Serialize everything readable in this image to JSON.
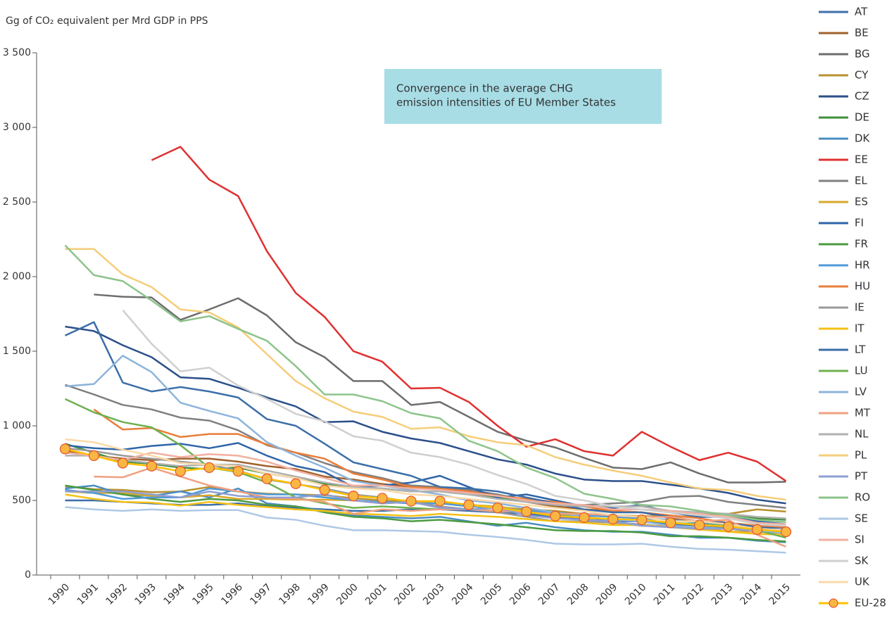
{
  "chart_data": {
    "type": "line",
    "title": "Gg of CO₂ equivalent per Mrd GDP in PPS",
    "annotation": [
      "Convergence in the average CHG",
      "emission intensities of EU Member States"
    ],
    "categories": [
      "1990",
      "1991",
      "1992",
      "1993",
      "1994",
      "1995",
      "1996",
      "1997",
      "1998",
      "1999",
      "2000",
      "2001",
      "2002",
      "2003",
      "2004",
      "2005",
      "2006",
      "2007",
      "2008",
      "2009",
      "2010",
      "2011",
      "2012",
      "2013",
      "2014",
      "2015"
    ],
    "ylim": [
      0,
      3500
    ],
    "yticks": [
      0,
      500,
      {
        "value": 1000,
        "label": "1 000"
      },
      {
        "value": 1500,
        "label": "1 500"
      },
      {
        "value": 2000,
        "label": "2 000"
      },
      {
        "value": 2500,
        "label": "2 500"
      },
      {
        "value": 3000,
        "label": "3 000"
      },
      {
        "value": 3500,
        "label": "3 500"
      }
    ],
    "series": [
      {
        "name": "AT",
        "color": "#3c6fa8",
        "values": [
          500,
          500,
          490,
          480,
          470,
          470,
          480,
          460,
          450,
          440,
          430,
          430,
          440,
          440,
          430,
          420,
          410,
          390,
          380,
          360,
          360,
          340,
          330,
          320,
          310,
          300
        ]
      },
      {
        "name": "BE",
        "color": "#a0612b",
        "values": [
          830,
          800,
          780,
          770,
          780,
          780,
          760,
          730,
          710,
          660,
          640,
          610,
          590,
          580,
          550,
          520,
          490,
          460,
          440,
          430,
          420,
          380,
          360,
          350,
          330,
          320
        ]
      },
      {
        "name": "BG",
        "color": "#6d6d6d",
        "values": [
          null,
          1880,
          1865,
          1860,
          1710,
          1780,
          1855,
          1740,
          1560,
          1460,
          1300,
          1300,
          1140,
          1160,
          1060,
          960,
          900,
          855,
          785,
          720,
          710,
          755,
          680,
          620,
          620,
          625
        ]
      },
      {
        "name": "CY",
        "color": "#b8912f",
        "values": [
          595,
          575,
          570,
          555,
          560,
          590,
          560,
          545,
          540,
          535,
          515,
          500,
          490,
          480,
          470,
          455,
          440,
          430,
          410,
          400,
          395,
          390,
          395,
          410,
          440,
          425
        ]
      },
      {
        "name": "CZ",
        "color": "#2b4f8a",
        "values": [
          1665,
          1635,
          1540,
          1460,
          1325,
          1315,
          1255,
          1190,
          1130,
          1025,
          1030,
          960,
          915,
          885,
          830,
          775,
          740,
          680,
          640,
          630,
          630,
          605,
          580,
          550,
          505,
          480
        ]
      },
      {
        "name": "DE",
        "color": "#3f8f3a",
        "values": [
          880,
          820,
          760,
          745,
          720,
          710,
          720,
          680,
          650,
          610,
          590,
          580,
          560,
          560,
          540,
          515,
          500,
          470,
          460,
          440,
          440,
          420,
          415,
          410,
          380,
          370
        ]
      },
      {
        "name": "DK",
        "color": "#4a8cc2",
        "values": [
          580,
          600,
          540,
          530,
          560,
          520,
          580,
          480,
          460,
          430,
          400,
          390,
          380,
          390,
          360,
          330,
          350,
          320,
          300,
          290,
          290,
          270,
          250,
          250,
          230,
          220
        ]
      },
      {
        "name": "EE",
        "color": "#e03030",
        "values": [
          null,
          null,
          null,
          2780,
          2870,
          2650,
          2540,
          2170,
          1890,
          1730,
          1500,
          1430,
          1250,
          1255,
          1160,
          1000,
          860,
          910,
          830,
          800,
          960,
          860,
          770,
          820,
          760,
          630
        ]
      },
      {
        "name": "EL",
        "color": "#808080",
        "values": [
          1275,
          1210,
          1140,
          1110,
          1055,
          1035,
          970,
          870,
          820,
          750,
          690,
          650,
          600,
          590,
          570,
          540,
          500,
          470,
          470,
          480,
          490,
          525,
          530,
          490,
          470,
          450
        ]
      },
      {
        "name": "ES",
        "color": "#d9a82a",
        "values": [
          560,
          550,
          550,
          530,
          520,
          535,
          510,
          510,
          505,
          505,
          500,
          480,
          490,
          480,
          470,
          460,
          430,
          415,
          380,
          350,
          330,
          330,
          320,
          290,
          290,
          290
        ]
      },
      {
        "name": "FI",
        "color": "#2f64a8",
        "values": [
          870,
          850,
          840,
          865,
          880,
          850,
          885,
          800,
          730,
          690,
          590,
          600,
          620,
          665,
          590,
          520,
          540,
          500,
          460,
          450,
          470,
          420,
          390,
          390,
          360,
          340
        ]
      },
      {
        "name": "FR",
        "color": "#4b9a40",
        "values": [
          600,
          570,
          540,
          510,
          490,
          510,
          500,
          470,
          460,
          420,
          390,
          380,
          360,
          370,
          355,
          340,
          320,
          300,
          295,
          295,
          285,
          260,
          260,
          250,
          235,
          225
        ]
      },
      {
        "name": "HR",
        "color": "#4f9ad9",
        "values": [
          570,
          550,
          510,
          520,
          520,
          580,
          560,
          540,
          540,
          520,
          500,
          490,
          480,
          480,
          460,
          450,
          430,
          420,
          400,
          390,
          380,
          370,
          350,
          340,
          320,
          310
        ]
      },
      {
        "name": "HU",
        "color": "#ea7e3a",
        "values": [
          null,
          1110,
          975,
          985,
          925,
          945,
          945,
          875,
          820,
          780,
          680,
          640,
          590,
          580,
          560,
          530,
          510,
          490,
          460,
          430,
          420,
          400,
          380,
          350,
          330,
          320
        ]
      },
      {
        "name": "IE",
        "color": "#9a9a9a",
        "values": [
          850,
          830,
          800,
          780,
          760,
          740,
          700,
          640,
          610,
          580,
          540,
          520,
          490,
          460,
          440,
          420,
          390,
          360,
          360,
          350,
          340,
          320,
          310,
          310,
          290,
          280
        ]
      },
      {
        "name": "IT",
        "color": "#f5c116",
        "values": [
          540,
          510,
          490,
          485,
          465,
          490,
          470,
          455,
          440,
          430,
          410,
          405,
          395,
          410,
          400,
          390,
          375,
          360,
          350,
          335,
          335,
          320,
          305,
          290,
          275,
          270
        ]
      },
      {
        "name": "LT",
        "color": "#3b6ea8",
        "values": [
          1605,
          1695,
          1290,
          1230,
          1260,
          1230,
          1190,
          1045,
          1000,
          880,
          755,
          710,
          665,
          590,
          580,
          560,
          520,
          480,
          440,
          420,
          420,
          390,
          360,
          350,
          320,
          310
        ]
      },
      {
        "name": "LU",
        "color": "#70b050",
        "values": [
          1180,
          1090,
          1025,
          990,
          870,
          720,
          690,
          620,
          520,
          480,
          450,
          460,
          450,
          440,
          440,
          450,
          420,
          400,
          390,
          370,
          370,
          350,
          340,
          330,
          300,
          250
        ]
      },
      {
        "name": "LV",
        "color": "#8cb4dc",
        "values": [
          1265,
          1280,
          1470,
          1360,
          1155,
          1100,
          1050,
          890,
          800,
          720,
          630,
          600,
          570,
          540,
          500,
          480,
          450,
          420,
          390,
          370,
          360,
          330,
          320,
          310,
          300,
          280
        ]
      },
      {
        "name": "MT",
        "color": "#f0a080",
        "values": [
          null,
          660,
          655,
          720,
          660,
          600,
          560,
          520,
          510,
          490,
          410,
          440,
          430,
          440,
          440,
          430,
          420,
          410,
          410,
          400,
          390,
          390,
          360,
          370,
          270,
          190
        ]
      },
      {
        "name": "NL",
        "color": "#b0b0b0",
        "values": [
          800,
          800,
          770,
          750,
          730,
          740,
          740,
          700,
          660,
          620,
          590,
          580,
          560,
          560,
          540,
          510,
          490,
          470,
          460,
          460,
          460,
          430,
          420,
          410,
          390,
          380
        ]
      },
      {
        "name": "PL",
        "color": "#f5cd7a",
        "values": [
          2185,
          2185,
          2015,
          1930,
          1780,
          1760,
          1660,
          1480,
          1300,
          1185,
          1095,
          1060,
          980,
          990,
          930,
          890,
          870,
          790,
          740,
          700,
          665,
          620,
          580,
          570,
          530,
          505
        ]
      },
      {
        "name": "PT",
        "color": "#8e9fd2",
        "values": [
          560,
          560,
          560,
          540,
          520,
          560,
          530,
          520,
          520,
          540,
          500,
          480,
          490,
          450,
          440,
          450,
          400,
          380,
          370,
          360,
          330,
          320,
          310,
          310,
          300,
          310
        ]
      },
      {
        "name": "RO",
        "color": "#8dc48a",
        "values": [
          2210,
          2010,
          1970,
          1840,
          1700,
          1735,
          1650,
          1570,
          1400,
          1210,
          1210,
          1165,
          1085,
          1050,
          900,
          830,
          720,
          650,
          545,
          510,
          470,
          460,
          430,
          400,
          370,
          355
        ]
      },
      {
        "name": "SE",
        "color": "#aec8e6",
        "values": [
          455,
          440,
          430,
          440,
          430,
          435,
          435,
          385,
          370,
          330,
          300,
          300,
          295,
          290,
          270,
          255,
          235,
          210,
          205,
          205,
          210,
          190,
          175,
          170,
          160,
          150
        ]
      },
      {
        "name": "SI",
        "color": "#f2b0a0",
        "values": [
          820,
          800,
          770,
          820,
          790,
          810,
          800,
          760,
          700,
          650,
          600,
          600,
          580,
          570,
          550,
          530,
          500,
          480,
          470,
          440,
          440,
          430,
          410,
          390,
          350,
          340
        ]
      },
      {
        "name": "SK",
        "color": "#cfcfcf",
        "values": [
          null,
          null,
          1775,
          1550,
          1365,
          1390,
          1270,
          1180,
          1080,
          1030,
          930,
          900,
          820,
          790,
          740,
          670,
          610,
          530,
          500,
          460,
          440,
          420,
          400,
          380,
          340,
          330
        ]
      },
      {
        "name": "UK",
        "color": "#fad9a8",
        "values": [
          910,
          890,
          840,
          800,
          750,
          740,
          730,
          680,
          650,
          600,
          580,
          570,
          540,
          530,
          510,
          490,
          470,
          450,
          430,
          400,
          390,
          360,
          360,
          340,
          310,
          300
        ]
      },
      {
        "name": "EU-28",
        "color": "#ffc000",
        "marker": true,
        "values": [
          845,
          800,
          750,
          730,
          695,
          720,
          695,
          645,
          612,
          570,
          530,
          515,
          495,
          495,
          470,
          450,
          425,
          395,
          385,
          375,
          370,
          350,
          335,
          325,
          305,
          290
        ]
      }
    ]
  }
}
